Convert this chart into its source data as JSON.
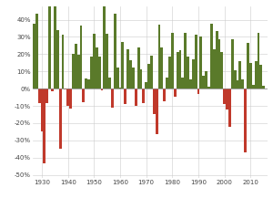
{
  "title": "",
  "years": [
    1927,
    1928,
    1929,
    1930,
    1931,
    1932,
    1933,
    1934,
    1935,
    1936,
    1937,
    1938,
    1939,
    1940,
    1941,
    1942,
    1943,
    1944,
    1945,
    1946,
    1947,
    1948,
    1949,
    1950,
    1951,
    1952,
    1953,
    1954,
    1955,
    1956,
    1957,
    1958,
    1959,
    1960,
    1961,
    1962,
    1963,
    1964,
    1965,
    1966,
    1967,
    1968,
    1969,
    1970,
    1971,
    1972,
    1973,
    1974,
    1975,
    1976,
    1977,
    1978,
    1979,
    1980,
    1981,
    1982,
    1983,
    1984,
    1985,
    1986,
    1987,
    1988,
    1989,
    1990,
    1991,
    1992,
    1993,
    1994,
    1995,
    1996,
    1997,
    1998,
    1999,
    2000,
    2001,
    2002,
    2003,
    2004,
    2005,
    2006,
    2007,
    2008,
    2009,
    2010,
    2011,
    2012,
    2013,
    2014,
    2015
  ],
  "returns": [
    37.5,
    43.6,
    -8.4,
    -24.9,
    -43.4,
    -8.2,
    53.9,
    -1.4,
    47.7,
    33.9,
    -35.0,
    31.1,
    -0.4,
    -9.8,
    -11.6,
    20.3,
    25.9,
    19.8,
    36.4,
    -8.1,
    5.7,
    5.5,
    18.8,
    31.7,
    24.0,
    18.4,
    -1.0,
    52.6,
    31.6,
    6.6,
    -10.8,
    43.4,
    12.0,
    0.5,
    26.9,
    -8.7,
    22.8,
    16.5,
    12.5,
    -10.1,
    24.0,
    11.1,
    -8.5,
    4.0,
    14.3,
    19.0,
    -14.7,
    -26.5,
    37.2,
    23.8,
    -7.2,
    6.6,
    18.6,
    32.4,
    -4.9,
    21.4,
    22.5,
    6.3,
    32.2,
    18.5,
    5.2,
    16.8,
    31.5,
    -3.1,
    30.5,
    7.7,
    10.1,
    1.3,
    37.6,
    23.0,
    33.4,
    28.6,
    21.0,
    -9.1,
    -11.9,
    -22.1,
    28.7,
    10.9,
    4.9,
    15.8,
    5.5,
    -37.0,
    26.5,
    15.1,
    2.1,
    16.0,
    32.4,
    13.7,
    1.4
  ],
  "positive_color": "#5a7a2a",
  "negative_color": "#c0392b",
  "background_color": "#ffffff",
  "grid_color": "#cccccc",
  "bar_width": 1.0,
  "xlim": [
    1926.5,
    2016.5
  ],
  "ylim": [
    -52,
    48
  ],
  "yticks": [
    -50,
    -40,
    -30,
    -20,
    -10,
    0,
    10,
    20,
    30,
    40
  ],
  "ytick_labels": [
    "-50%",
    "-40%",
    "-30%",
    "-20%",
    "-10%",
    "0%",
    "10%",
    "20%",
    "30%",
    "40%"
  ],
  "xticks": [
    1930,
    1940,
    1950,
    1960,
    1970,
    1980,
    1990,
    2000,
    2010
  ],
  "tick_fontsize": 5.0,
  "figsize": [
    3.0,
    2.17
  ],
  "dpi": 100
}
